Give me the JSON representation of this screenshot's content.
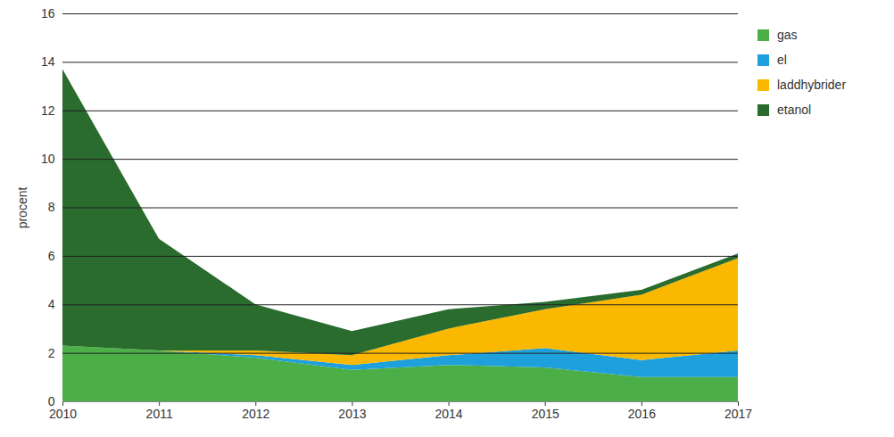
{
  "chart_data": {
    "type": "area",
    "stacked": true,
    "y_label": "procent",
    "x": [
      2010,
      2011,
      2012,
      2013,
      2014,
      2015,
      2016,
      2017
    ],
    "xlim": [
      2010,
      2017
    ],
    "xticks": [
      2010,
      2011,
      2012,
      2013,
      2014,
      2015,
      2016,
      2017
    ],
    "ylim": [
      0,
      16
    ],
    "yticks": [
      0,
      2,
      4,
      6,
      8,
      10,
      12,
      14,
      16
    ],
    "grid": true,
    "legend": "right",
    "series": [
      {
        "name": "gas",
        "color": "#4cae47",
        "values": [
          2.3,
          2.1,
          1.8,
          1.3,
          1.5,
          1.4,
          1.0,
          1.0
        ]
      },
      {
        "name": "el",
        "color": "#1ea0dc",
        "values": [
          0,
          0,
          0.1,
          0.2,
          0.4,
          0.8,
          0.7,
          1.1
        ]
      },
      {
        "name": "laddhybrider",
        "color": "#fbb800",
        "values": [
          0,
          0,
          0.2,
          0.4,
          1.1,
          1.6,
          2.7,
          3.8
        ]
      },
      {
        "name": "etanol",
        "color": "#2a6b2e",
        "values": [
          11.4,
          4.6,
          1.9,
          1.0,
          0.8,
          0.3,
          0.2,
          0.2
        ]
      }
    ]
  }
}
